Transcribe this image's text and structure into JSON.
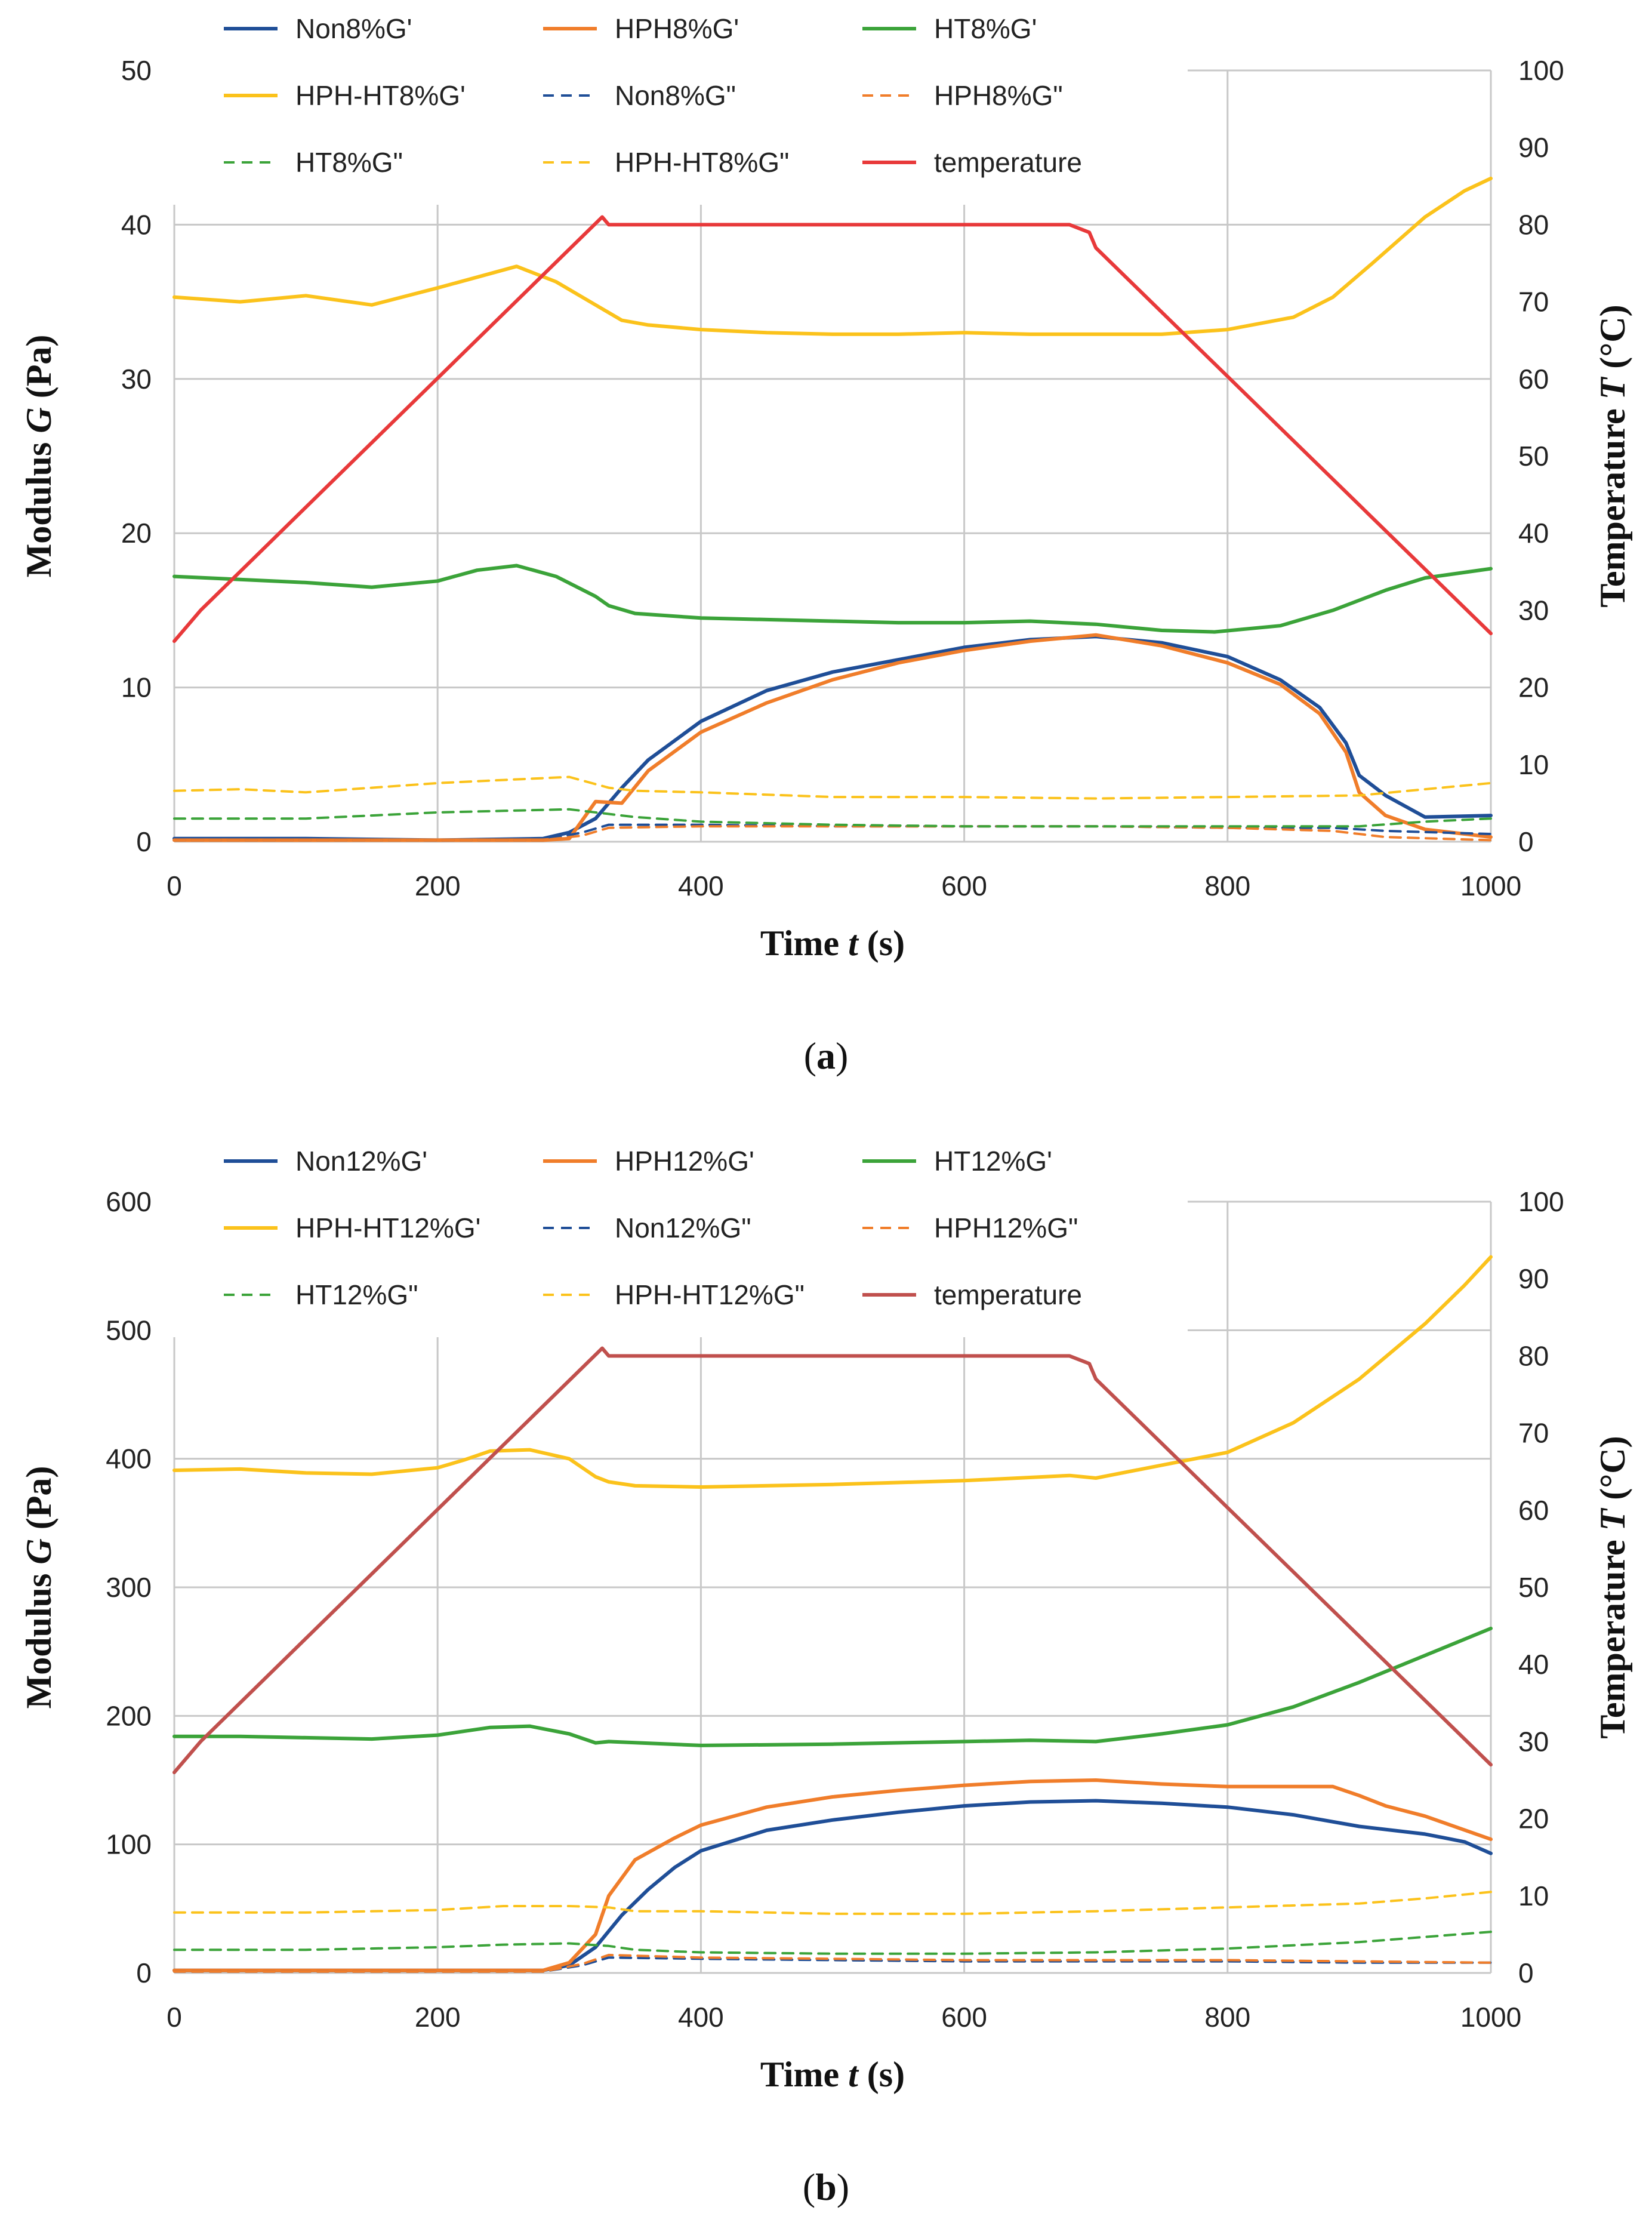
{
  "chart_data": [
    {
      "type": "line",
      "caption_letter": "a",
      "caption_open": "(",
      "caption_close": ")",
      "xlabel_main": "Time ",
      "xlabel_var": "t",
      "xlabel_unit": " (s)",
      "ylabel_main": "Modulus ",
      "ylabel_var": "G",
      "ylabel_unit": " (Pa)",
      "y2label_main": "Temperature ",
      "y2label_var": "T",
      "y2label_unit": " (°C)",
      "xlim": [
        0,
        1000
      ],
      "ylim": [
        0,
        50
      ],
      "y2lim": [
        0,
        100
      ],
      "xticks": [
        "0",
        "200",
        "400",
        "600",
        "800",
        "1000"
      ],
      "yticks": [
        "0",
        "10",
        "20",
        "30",
        "40",
        "50"
      ],
      "y2ticks": [
        "0",
        "10",
        "20",
        "30",
        "40",
        "50",
        "60",
        "70",
        "80",
        "90",
        "100"
      ],
      "legend_position": "top",
      "series": [
        {
          "name": "Non8%G'",
          "color": "#1f4e97",
          "style": "solid",
          "axis": "left",
          "x": [
            0,
            100,
            200,
            280,
            300,
            320,
            340,
            360,
            400,
            450,
            500,
            550,
            600,
            650,
            700,
            750,
            800,
            840,
            870,
            890,
            900,
            920,
            950,
            1000
          ],
          "y": [
            0.2,
            0.2,
            0.1,
            0.2,
            0.6,
            1.5,
            3.5,
            5.3,
            7.8,
            9.8,
            11.0,
            11.8,
            12.6,
            13.1,
            13.3,
            12.9,
            12.0,
            10.5,
            8.7,
            6.4,
            4.3,
            3.0,
            1.6,
            1.7
          ]
        },
        {
          "name": "HPH8%G'",
          "color": "#f07d2a",
          "style": "solid",
          "axis": "left",
          "x": [
            0,
            100,
            200,
            280,
            300,
            320,
            340,
            360,
            400,
            450,
            500,
            550,
            600,
            650,
            700,
            750,
            800,
            840,
            870,
            890,
            900,
            920,
            950,
            1000
          ],
          "y": [
            0.1,
            0.1,
            0.1,
            0.1,
            0.2,
            2.6,
            2.5,
            4.6,
            7.1,
            9.0,
            10.5,
            11.6,
            12.4,
            13.0,
            13.4,
            12.7,
            11.6,
            10.2,
            8.3,
            5.8,
            3.2,
            1.7,
            0.8,
            0.3
          ]
        },
        {
          "name": "HT8%G'",
          "color": "#3ba339",
          "style": "solid",
          "axis": "left",
          "x": [
            0,
            50,
            100,
            150,
            200,
            230,
            260,
            290,
            320,
            330,
            350,
            400,
            450,
            500,
            550,
            600,
            650,
            700,
            750,
            790,
            840,
            880,
            920,
            950,
            1000
          ],
          "y": [
            17.2,
            17.0,
            16.8,
            16.5,
            16.9,
            17.6,
            17.9,
            17.2,
            15.9,
            15.3,
            14.8,
            14.5,
            14.4,
            14.3,
            14.2,
            14.2,
            14.3,
            14.1,
            13.7,
            13.6,
            14.0,
            15.0,
            16.3,
            17.1,
            17.7
          ]
        },
        {
          "name": "HPH-HT8%G'",
          "color": "#fbc21b",
          "style": "solid",
          "axis": "left",
          "x": [
            0,
            50,
            100,
            150,
            200,
            230,
            260,
            290,
            320,
            340,
            360,
            400,
            450,
            500,
            550,
            600,
            650,
            700,
            750,
            800,
            850,
            880,
            910,
            950,
            980,
            1000
          ],
          "y": [
            35.3,
            35.0,
            35.4,
            34.8,
            35.9,
            36.6,
            37.3,
            36.3,
            34.8,
            33.8,
            33.5,
            33.2,
            33.0,
            32.9,
            32.9,
            33.0,
            32.9,
            32.9,
            32.9,
            33.2,
            34.0,
            35.3,
            37.5,
            40.5,
            42.2,
            43.0
          ]
        },
        {
          "name": "Non8%G\"",
          "color": "#1f4e97",
          "style": "dash",
          "axis": "left",
          "x": [
            0,
            280,
            310,
            330,
            400,
            500,
            600,
            700,
            800,
            880,
            920,
            1000
          ],
          "y": [
            0.1,
            0.1,
            0.6,
            1.1,
            1.1,
            1.0,
            1.0,
            1.0,
            0.9,
            0.9,
            0.7,
            0.5
          ]
        },
        {
          "name": "HPH8%G\"",
          "color": "#f07d2a",
          "style": "dash",
          "axis": "left",
          "x": [
            0,
            280,
            310,
            330,
            400,
            500,
            600,
            700,
            800,
            880,
            920,
            1000
          ],
          "y": [
            0.1,
            0.1,
            0.4,
            0.9,
            1.0,
            1.0,
            1.0,
            1.0,
            0.9,
            0.7,
            0.3,
            0.1
          ]
        },
        {
          "name": "HT8%G\"",
          "color": "#3ba339",
          "style": "dash",
          "axis": "left",
          "x": [
            0,
            50,
            100,
            150,
            200,
            250,
            300,
            330,
            350,
            400,
            500,
            600,
            700,
            800,
            900,
            950,
            1000
          ],
          "y": [
            1.5,
            1.5,
            1.5,
            1.7,
            1.9,
            2.0,
            2.1,
            1.8,
            1.6,
            1.3,
            1.1,
            1.0,
            1.0,
            1.0,
            1.0,
            1.3,
            1.5
          ]
        },
        {
          "name": "HPH-HT8%G\"",
          "color": "#fbc21b",
          "style": "dash",
          "axis": "left",
          "x": [
            0,
            50,
            100,
            150,
            200,
            250,
            300,
            330,
            350,
            400,
            500,
            600,
            700,
            800,
            900,
            950,
            1000
          ],
          "y": [
            3.3,
            3.4,
            3.2,
            3.5,
            3.8,
            4.0,
            4.2,
            3.5,
            3.3,
            3.2,
            2.9,
            2.9,
            2.8,
            2.9,
            3.0,
            3.4,
            3.8
          ]
        },
        {
          "name": "temperature",
          "color": "#e8393a",
          "style": "solid",
          "axis": "right",
          "x": [
            0,
            20,
            325,
            330,
            680,
            695,
            700,
            1000
          ],
          "y": [
            26,
            30,
            81,
            80,
            80,
            79,
            77,
            27
          ]
        }
      ]
    },
    {
      "type": "line",
      "caption_letter": "b",
      "caption_open": "(",
      "caption_close": ")",
      "xlabel_main": "Time ",
      "xlabel_var": "t",
      "xlabel_unit": " (s)",
      "ylabel_main": "Modulus ",
      "ylabel_var": "G",
      "ylabel_unit": " (Pa)",
      "y2label_main": "Temperature ",
      "y2label_var": "T",
      "y2label_unit": " (°C)",
      "xlim": [
        0,
        1000
      ],
      "ylim": [
        0,
        600
      ],
      "y2lim": [
        0,
        100
      ],
      "xticks": [
        "0",
        "200",
        "400",
        "600",
        "800",
        "1000"
      ],
      "yticks": [
        "0",
        "100",
        "200",
        "300",
        "400",
        "500",
        "600"
      ],
      "y2ticks": [
        "0",
        "10",
        "20",
        "30",
        "40",
        "50",
        "60",
        "70",
        "80",
        "90",
        "100"
      ],
      "legend_position": "top",
      "series": [
        {
          "name": "Non12%G'",
          "color": "#1f4e97",
          "style": "solid",
          "axis": "left",
          "x": [
            0,
            280,
            300,
            320,
            340,
            360,
            380,
            400,
            450,
            500,
            550,
            600,
            650,
            700,
            750,
            800,
            850,
            900,
            950,
            980,
            1000
          ],
          "y": [
            2,
            2,
            6,
            20,
            45,
            65,
            82,
            95,
            111,
            119,
            125,
            130,
            133,
            134,
            132,
            129,
            123,
            114,
            108,
            102,
            93
          ]
        },
        {
          "name": "HPH12%G'",
          "color": "#f07d2a",
          "style": "solid",
          "axis": "left",
          "x": [
            0,
            280,
            300,
            320,
            330,
            350,
            380,
            400,
            450,
            500,
            550,
            600,
            650,
            700,
            750,
            800,
            850,
            880,
            900,
            920,
            950,
            1000
          ],
          "y": [
            2,
            2,
            8,
            30,
            60,
            88,
            105,
            115,
            129,
            137,
            142,
            146,
            149,
            150,
            147,
            145,
            145,
            145,
            138,
            130,
            122,
            104
          ]
        },
        {
          "name": "HT12%G'",
          "color": "#3ba339",
          "style": "solid",
          "axis": "left",
          "x": [
            0,
            50,
            100,
            150,
            200,
            240,
            270,
            300,
            320,
            330,
            400,
            500,
            600,
            650,
            700,
            750,
            800,
            850,
            900,
            950,
            1000
          ],
          "y": [
            184,
            184,
            183,
            182,
            185,
            191,
            192,
            186,
            179,
            180,
            177,
            178,
            180,
            181,
            180,
            186,
            193,
            207,
            226,
            247,
            268
          ]
        },
        {
          "name": "HPH-HT12%G'",
          "color": "#fbc21b",
          "style": "solid",
          "axis": "left",
          "x": [
            0,
            50,
            100,
            150,
            200,
            220,
            240,
            270,
            300,
            320,
            330,
            350,
            400,
            500,
            600,
            680,
            700,
            750,
            800,
            850,
            900,
            950,
            980,
            1000
          ],
          "y": [
            391,
            392,
            389,
            388,
            393,
            399,
            406,
            407,
            400,
            386,
            382,
            379,
            378,
            380,
            383,
            387,
            385,
            395,
            405,
            428,
            462,
            505,
            535,
            557
          ]
        },
        {
          "name": "Non12%G\"",
          "color": "#1f4e97",
          "style": "dash",
          "axis": "left",
          "x": [
            0,
            280,
            310,
            330,
            400,
            500,
            600,
            700,
            800,
            900,
            1000
          ],
          "y": [
            1,
            1,
            6,
            12,
            11,
            10,
            9,
            9,
            9,
            8,
            8
          ]
        },
        {
          "name": "HPH12%G\"",
          "color": "#f07d2a",
          "style": "dash",
          "axis": "left",
          "x": [
            0,
            280,
            310,
            330,
            400,
            500,
            600,
            700,
            800,
            900,
            1000
          ],
          "y": [
            1,
            1,
            7,
            14,
            12,
            11,
            10,
            10,
            10,
            9,
            8
          ]
        },
        {
          "name": "HT12%G\"",
          "color": "#3ba339",
          "style": "dash",
          "axis": "left",
          "x": [
            0,
            100,
            200,
            250,
            300,
            330,
            350,
            400,
            500,
            600,
            700,
            800,
            900,
            950,
            1000
          ],
          "y": [
            18,
            18,
            20,
            22,
            23,
            21,
            18,
            16,
            15,
            15,
            16,
            19,
            24,
            28,
            32
          ]
        },
        {
          "name": "HPH-HT12%G\"",
          "color": "#fbc21b",
          "style": "dash",
          "axis": "left",
          "x": [
            0,
            100,
            200,
            250,
            300,
            330,
            350,
            400,
            500,
            600,
            700,
            800,
            900,
            950,
            1000
          ],
          "y": [
            47,
            47,
            49,
            52,
            52,
            51,
            48,
            48,
            46,
            46,
            48,
            51,
            54,
            58,
            63
          ]
        },
        {
          "name": "temperature",
          "color": "#c0504d",
          "style": "solid",
          "axis": "right",
          "x": [
            0,
            20,
            325,
            330,
            680,
            695,
            700,
            1000
          ],
          "y": [
            26,
            30,
            81,
            80,
            80,
            79,
            77,
            27
          ]
        }
      ]
    }
  ]
}
